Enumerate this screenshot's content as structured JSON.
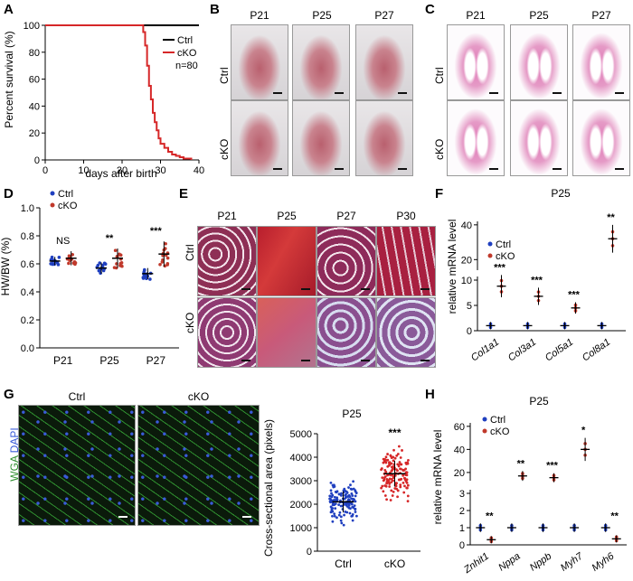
{
  "panels": {
    "A": {
      "label": "A",
      "chart_data": {
        "type": "line",
        "ylabel": "Percent survival (%)",
        "xlabel": "days after birth",
        "xlim": [
          0,
          40
        ],
        "ylim": [
          0,
          100
        ],
        "xticks": [
          "0",
          "10",
          "20",
          "30",
          "40"
        ],
        "yticks": [
          "0",
          "20",
          "40",
          "60",
          "80",
          "100"
        ],
        "legend": {
          "entries": [
            "Ctrl",
            "cKO"
          ],
          "note": "n=80",
          "position": "right"
        },
        "series": [
          {
            "name": "Ctrl",
            "color": "#000000",
            "x": [
              0,
              40
            ],
            "y": [
              100,
              100
            ]
          },
          {
            "name": "cKO",
            "color": "#d62728",
            "x": [
              0,
              25,
              25.5,
              26,
              26.5,
              27,
              27.5,
              28,
              28.5,
              29,
              29.5,
              30,
              31,
              32,
              33,
              34,
              35,
              36,
              37,
              38
            ],
            "y": [
              100,
              100,
              95,
              85,
              70,
              55,
              45,
              35,
              28,
              22,
              16,
              12,
              9,
              6,
              4,
              3,
              2,
              1,
              1,
              0
            ]
          }
        ]
      }
    },
    "B": {
      "label": "B",
      "columns": [
        "P21",
        "P25",
        "P27"
      ],
      "rows": [
        "Ctrl",
        "cKO"
      ]
    },
    "C": {
      "label": "C",
      "columns": [
        "P21",
        "P25",
        "P27"
      ],
      "rows": [
        "Ctrl",
        "cKO"
      ]
    },
    "D": {
      "label": "D",
      "chart_data": {
        "type": "scatter",
        "ylabel": "HW/BW (%)",
        "categories": [
          "P21",
          "P25",
          "P27"
        ],
        "ylim": [
          0.0,
          1.0
        ],
        "yticks": [
          "0.0",
          "0.2",
          "0.4",
          "0.6",
          "0.8",
          "1.0"
        ],
        "legend": {
          "entries": [
            "Ctrl",
            "cKO"
          ],
          "position": "top-left"
        },
        "significance": [
          "NS",
          "**",
          "***"
        ],
        "series": [
          {
            "name": "Ctrl",
            "color": "#1f3fbf",
            "means": [
              0.62,
              0.57,
              0.53
            ],
            "sd": [
              0.03,
              0.04,
              0.04
            ]
          },
          {
            "name": "cKO",
            "color": "#c0392b",
            "means": [
              0.64,
              0.64,
              0.67
            ],
            "sd": [
              0.05,
              0.07,
              0.09
            ]
          }
        ]
      }
    },
    "E": {
      "label": "E",
      "columns": [
        "P21",
        "P25",
        "P27",
        "P30"
      ],
      "rows": [
        "Ctrl",
        "cKO"
      ]
    },
    "F": {
      "label": "F",
      "chart_data": {
        "type": "scatter",
        "title": "P25",
        "ylabel": "relative mRNA level",
        "categories": [
          "Col1a1",
          "Col3a1",
          "Col5a1",
          "Col8a1"
        ],
        "yticks_upper": [
          "20",
          "40"
        ],
        "yticks_lower": [
          "0",
          "5",
          "10"
        ],
        "legend": {
          "entries": [
            "Ctrl",
            "cKO"
          ],
          "position": "top-left"
        },
        "significance": [
          "***",
          "***",
          "***",
          "**"
        ],
        "series": [
          {
            "name": "Ctrl",
            "color": "#1f3fbf",
            "values": [
              1,
              1,
              1,
              1
            ]
          },
          {
            "name": "cKO",
            "color": "#c0392b",
            "values": [
              8.8,
              6.8,
              4.5,
              32
            ]
          }
        ]
      }
    },
    "G": {
      "label": "G",
      "columns": [
        "Ctrl",
        "cKO"
      ],
      "stain_wga": "WGA",
      "stain_dapi": "DAPI",
      "chart_data": {
        "type": "scatter",
        "title": "P25",
        "ylabel": "Cross-sectional area (pixels)",
        "categories": [
          "Ctrl",
          "cKO"
        ],
        "ylim": [
          0,
          5000
        ],
        "yticks": [
          "0",
          "1000",
          "2000",
          "3000",
          "4000",
          "5000"
        ],
        "significance": "***",
        "series": [
          {
            "name": "Ctrl",
            "color": "#1f3fbf",
            "mean": 2100,
            "sd": 450
          },
          {
            "name": "cKO",
            "color": "#d62728",
            "mean": 3300,
            "sd": 550
          }
        ]
      }
    },
    "H": {
      "label": "H",
      "chart_data": {
        "type": "scatter",
        "title": "P25",
        "ylabel": "relative mRNA level",
        "categories": [
          "Znhit1",
          "Nppa",
          "Nppb",
          "Myh7",
          "Myh6"
        ],
        "yticks_upper": [
          "20",
          "40",
          "60"
        ],
        "yticks_lower": [
          "0",
          "1",
          "2",
          "3"
        ],
        "legend": {
          "entries": [
            "Ctrl",
            "cKO"
          ],
          "position": "top-left"
        },
        "significance": [
          "**",
          "**",
          "***",
          "*",
          "**"
        ],
        "series": [
          {
            "name": "Ctrl",
            "color": "#1f3fbf",
            "values": [
              1.0,
              1.0,
              1.0,
              1.0,
              1.0
            ]
          },
          {
            "name": "cKO",
            "color": "#c0392b",
            "values": [
              0.3,
              17,
              15.5,
              40,
              0.35
            ]
          }
        ]
      }
    }
  },
  "colors": {
    "ctrl": "#1f3fbf",
    "cko": "#c0392b",
    "wga_green": "#2f8f2f",
    "dapi_blue": "#3a5bd9"
  }
}
